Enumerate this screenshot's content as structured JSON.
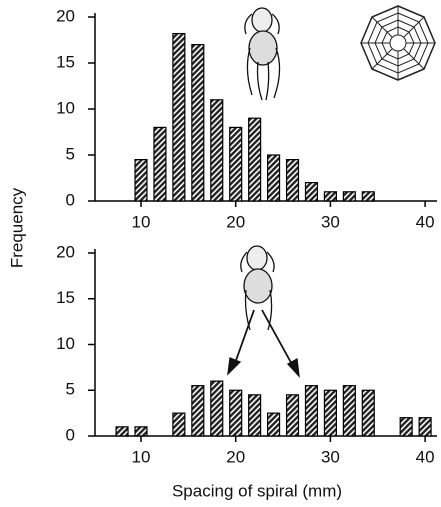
{
  "chart_data": [
    {
      "type": "histogram",
      "ylabel": "Frequency",
      "bins": [
        9,
        11,
        13,
        15,
        17,
        19,
        21,
        23,
        25,
        27,
        29,
        31,
        33,
        35
      ],
      "values": [
        4.5,
        8,
        18.2,
        17,
        11,
        8,
        9,
        5,
        4.5,
        2,
        1,
        1,
        1
      ],
      "xlim": [
        5,
        41
      ],
      "xticks": [
        10,
        20,
        30,
        40
      ],
      "ylim": [
        0,
        20
      ],
      "yticks": [
        0,
        5,
        10,
        15,
        20
      ]
    },
    {
      "type": "histogram",
      "xlabel": "Spacing of spiral (mm)",
      "bins": [
        7,
        9,
        11,
        13,
        15,
        17,
        19,
        21,
        23,
        25,
        27,
        29,
        31,
        33,
        35,
        37,
        39,
        41
      ],
      "values": [
        1,
        1,
        0,
        2.5,
        5.5,
        6,
        5,
        4.5,
        2.5,
        4.5,
        5.5,
        5,
        5.5,
        5,
        0,
        2,
        2
      ],
      "xlim": [
        5,
        41
      ],
      "xticks": [
        10,
        20,
        30,
        40
      ],
      "ylim": [
        0,
        20
      ],
      "yticks": [
        0,
        5,
        10,
        15,
        20
      ]
    }
  ]
}
